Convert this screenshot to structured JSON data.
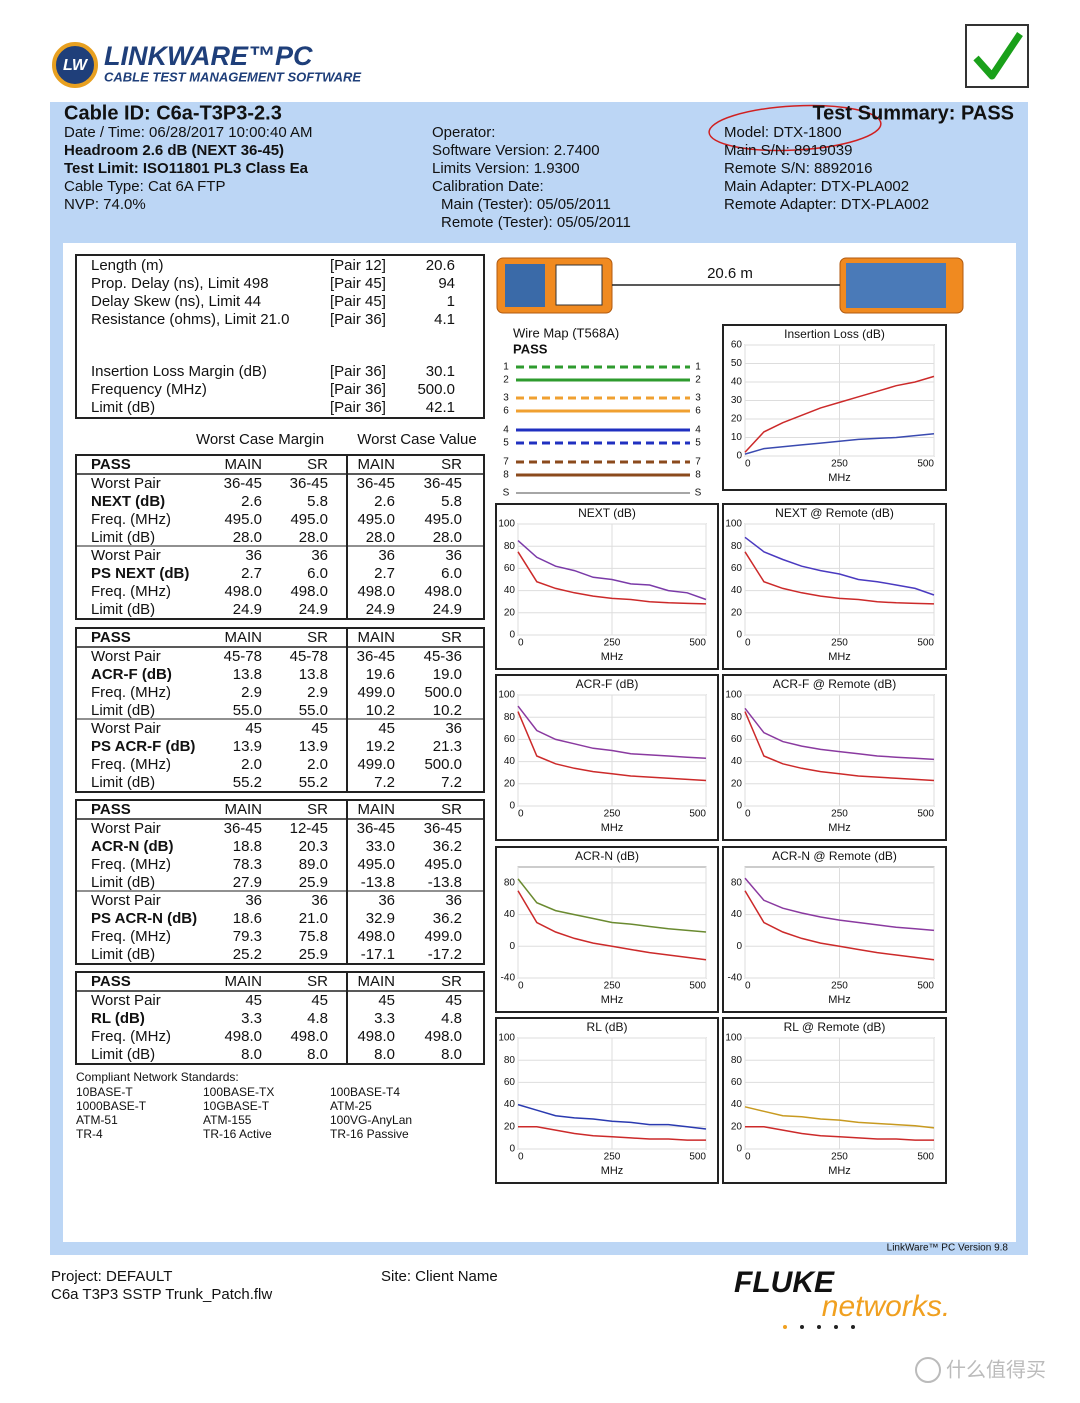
{
  "header": {
    "badge": "LW",
    "product": "LINKWARE™PC",
    "tagline": "CABLE TEST MANAGEMENT SOFTWARE"
  },
  "summary": {
    "cable_id": "Cable ID: C6a-T3P3-2.3",
    "result": "Test Summary: PASS",
    "left": [
      "Date / Time: 06/28/2017  10:00:40 AM",
      "Headroom 2.6 dB (NEXT 36-45)",
      "Test Limit: ISO11801 PL3 Class Ea",
      "Cable Type: Cat 6A FTP",
      "NVP: 74.0%"
    ],
    "middle": [
      "Operator:",
      "Software Version: 2.7400",
      "Limits Version: 1.9300",
      "Calibration Date:",
      "Main (Tester): 05/05/2011",
      "Remote (Tester): 05/05/2011"
    ],
    "right": [
      "Model: DTX-1800",
      "Main S/N: 8919039",
      "Remote S/N: 8892016",
      "Main Adapter: DTX-PLA002",
      "Remote Adapter: DTX-PLA002"
    ]
  },
  "length_table": {
    "rows": [
      [
        "Length (m)",
        "[Pair 12]",
        "20.6"
      ],
      [
        "Prop. Delay (ns), Limit 498",
        "[Pair 45]",
        "94"
      ],
      [
        "Delay Skew (ns), Limit 44",
        "[Pair 45]",
        "1"
      ],
      [
        "Resistance (ohms), Limit 21.0",
        "[Pair 36]",
        "4.1"
      ],
      [
        "Insertion Loss Margin (dB)",
        "[Pair 36]",
        "30.1"
      ],
      [
        "Frequency (MHz)",
        "[Pair 36]",
        "500.0"
      ],
      [
        "Limit (dB)",
        "[Pair 36]",
        "42.1"
      ]
    ]
  },
  "results": {
    "margin_heading": "Worst Case Margin",
    "value_heading": "Worst Case Value",
    "blocks": [
      {
        "header": [
          "PASS",
          "MAIN",
          "SR",
          "MAIN",
          "SR"
        ],
        "rows": [
          [
            "Worst Pair",
            "36-45",
            "36-45",
            "36-45",
            "36-45"
          ],
          [
            "NEXT (dB)",
            "2.6",
            "5.8",
            "2.6",
            "5.8"
          ],
          [
            "Freq. (MHz)",
            "495.0",
            "495.0",
            "495.0",
            "495.0"
          ],
          [
            "Limit (dB)",
            "28.0",
            "28.0",
            "28.0",
            "28.0"
          ],
          [
            "Worst Pair",
            "36",
            "36",
            "36",
            "36"
          ],
          [
            "PS NEXT (dB)",
            "2.7",
            "6.0",
            "2.7",
            "6.0"
          ],
          [
            "Freq. (MHz)",
            "498.0",
            "498.0",
            "498.0",
            "498.0"
          ],
          [
            "Limit (dB)",
            "24.9",
            "24.9",
            "24.9",
            "24.9"
          ]
        ]
      },
      {
        "header": [
          "PASS",
          "MAIN",
          "SR",
          "MAIN",
          "SR"
        ],
        "rows": [
          [
            "Worst Pair",
            "45-78",
            "45-78",
            "36-45",
            "45-36"
          ],
          [
            "ACR-F (dB)",
            "13.8",
            "13.8",
            "19.6",
            "19.0"
          ],
          [
            "Freq. (MHz)",
            "2.9",
            "2.9",
            "499.0",
            "500.0"
          ],
          [
            "Limit (dB)",
            "55.0",
            "55.0",
            "10.2",
            "10.2"
          ],
          [
            "Worst Pair",
            "45",
            "45",
            "45",
            "36"
          ],
          [
            "PS ACR-F (dB)",
            "13.9",
            "13.9",
            "19.2",
            "21.3"
          ],
          [
            "Freq. (MHz)",
            "2.0",
            "2.0",
            "499.0",
            "500.0"
          ],
          [
            "Limit (dB)",
            "55.2",
            "55.2",
            "7.2",
            "7.2"
          ]
        ]
      },
      {
        "header": [
          "PASS",
          "MAIN",
          "SR",
          "MAIN",
          "SR"
        ],
        "rows": [
          [
            "Worst Pair",
            "36-45",
            "12-45",
            "36-45",
            "36-45"
          ],
          [
            "ACR-N (dB)",
            "18.8",
            "20.3",
            "33.0",
            "36.2"
          ],
          [
            "Freq. (MHz)",
            "78.3",
            "89.0",
            "495.0",
            "495.0"
          ],
          [
            "Limit (dB)",
            "27.9",
            "25.9",
            "-13.8",
            "-13.8"
          ],
          [
            "Worst Pair",
            "36",
            "36",
            "36",
            "36"
          ],
          [
            "PS ACR-N (dB)",
            "18.6",
            "21.0",
            "32.9",
            "36.2"
          ],
          [
            "Freq. (MHz)",
            "79.3",
            "75.8",
            "498.0",
            "499.0"
          ],
          [
            "Limit (dB)",
            "25.2",
            "25.9",
            "-17.1",
            "-17.2"
          ]
        ]
      },
      {
        "header": [
          "PASS",
          "MAIN",
          "SR",
          "MAIN",
          "SR"
        ],
        "rows": [
          [
            "Worst Pair",
            "45",
            "45",
            "45",
            "45"
          ],
          [
            "RL (dB)",
            "3.3",
            "4.8",
            "3.3",
            "4.8"
          ],
          [
            "Freq. (MHz)",
            "498.0",
            "498.0",
            "498.0",
            "498.0"
          ],
          [
            "Limit (dB)",
            "8.0",
            "8.0",
            "8.0",
            "8.0"
          ]
        ]
      }
    ]
  },
  "standards": {
    "title": "Compliant Network Standards:",
    "items": [
      "10BASE-T",
      "100BASE-TX",
      "100BASE-T4",
      "1000BASE-T",
      "10GBASE-T",
      "ATM-25",
      "ATM-51",
      "ATM-155",
      "100VG-AnyLan",
      "TR-4",
      "TR-16 Active",
      "TR-16 Passive"
    ]
  },
  "wiremap": {
    "length": "20.6 m",
    "title": "Wire Map (T568A)",
    "result": "PASS",
    "wires": [
      {
        "pin": "1",
        "color": "#2e9b2e",
        "dashed": true
      },
      {
        "pin": "2",
        "color": "#2e9b2e",
        "dashed": false
      },
      {
        "pin": "3",
        "color": "#f0a030",
        "dashed": true
      },
      {
        "pin": "6",
        "color": "#f0a030",
        "dashed": false
      },
      {
        "pin": "4",
        "color": "#2030c0",
        "dashed": false
      },
      {
        "pin": "5",
        "color": "#2030c0",
        "dashed": true
      },
      {
        "pin": "7",
        "color": "#8b4a1c",
        "dashed": true
      },
      {
        "pin": "8",
        "color": "#8b4a1c",
        "dashed": false
      },
      {
        "pin": "S",
        "color": "#888888",
        "dashed": false
      }
    ]
  },
  "chart_data": [
    {
      "type": "line",
      "title": "Insertion Loss (dB)",
      "xlabel": "MHz",
      "x": [
        0,
        50,
        100,
        150,
        200,
        250,
        300,
        350,
        400,
        450,
        500
      ],
      "xlim": [
        0,
        500
      ],
      "xticks": [
        0,
        250,
        500
      ],
      "ylim": [
        0,
        60
      ],
      "yticks": [
        0,
        10,
        20,
        30,
        40,
        50,
        60
      ],
      "grid": true,
      "series": [
        {
          "color": "#cc2a2a",
          "values": [
            2,
            13,
            18,
            22,
            26,
            29,
            32,
            35,
            38,
            40,
            43
          ]
        },
        {
          "color": "#3a4ab0",
          "values": [
            1,
            4,
            5,
            6,
            7,
            8,
            9,
            9.5,
            10,
            11,
            12
          ]
        }
      ]
    },
    {
      "type": "line",
      "title": "NEXT (dB)",
      "xlabel": "MHz",
      "x": [
        0,
        50,
        100,
        150,
        200,
        250,
        300,
        350,
        400,
        450,
        500
      ],
      "xlim": [
        0,
        500
      ],
      "xticks": [
        0,
        250,
        500
      ],
      "ylim": [
        0,
        100
      ],
      "yticks": [
        0,
        20,
        40,
        60,
        80,
        100
      ],
      "grid": true,
      "series": [
        {
          "color": "#cc2a2a",
          "values": [
            75,
            48,
            42,
            38,
            35,
            33,
            32,
            30,
            29,
            28.5,
            28
          ]
        },
        {
          "color": "#7a3aa8",
          "values": [
            85,
            70,
            62,
            58,
            52,
            50,
            46,
            45,
            40,
            38,
            32
          ]
        }
      ]
    },
    {
      "type": "line",
      "title": "NEXT @ Remote (dB)",
      "xlabel": "MHz",
      "x": [
        0,
        50,
        100,
        150,
        200,
        250,
        300,
        350,
        400,
        450,
        500
      ],
      "xlim": [
        0,
        500
      ],
      "xticks": [
        0,
        250,
        500
      ],
      "ylim": [
        0,
        100
      ],
      "yticks": [
        0,
        20,
        40,
        60,
        80,
        100
      ],
      "grid": true,
      "series": [
        {
          "color": "#cc2a2a",
          "values": [
            75,
            48,
            42,
            38,
            35,
            33,
            32,
            30,
            29,
            28.5,
            28
          ]
        },
        {
          "color": "#4a3ac0",
          "values": [
            88,
            75,
            68,
            62,
            58,
            55,
            50,
            48,
            45,
            42,
            36
          ]
        }
      ]
    },
    {
      "type": "line",
      "title": "ACR-F (dB)",
      "xlabel": "MHz",
      "x": [
        0,
        50,
        100,
        150,
        200,
        250,
        300,
        350,
        400,
        450,
        500
      ],
      "xlim": [
        0,
        500
      ],
      "xticks": [
        0,
        250,
        500
      ],
      "ylim": [
        0,
        100
      ],
      "yticks": [
        0,
        20,
        40,
        60,
        80,
        100
      ],
      "grid": true,
      "series": [
        {
          "color": "#cc2a2a",
          "values": [
            85,
            45,
            38,
            34,
            31,
            29,
            27,
            26,
            25,
            24,
            23
          ]
        },
        {
          "color": "#8a3aa0",
          "values": [
            90,
            68,
            60,
            56,
            52,
            50,
            47,
            46,
            45,
            44,
            43
          ]
        }
      ]
    },
    {
      "type": "line",
      "title": "ACR-F @ Remote (dB)",
      "xlabel": "MHz",
      "x": [
        0,
        50,
        100,
        150,
        200,
        250,
        300,
        350,
        400,
        450,
        500
      ],
      "xlim": [
        0,
        500
      ],
      "xticks": [
        0,
        250,
        500
      ],
      "ylim": [
        0,
        100
      ],
      "yticks": [
        0,
        20,
        40,
        60,
        80,
        100
      ],
      "grid": true,
      "series": [
        {
          "color": "#cc2a2a",
          "values": [
            85,
            45,
            38,
            34,
            31,
            29,
            27,
            26,
            25,
            24,
            23
          ]
        },
        {
          "color": "#8a3aa0",
          "values": [
            88,
            66,
            58,
            54,
            51,
            49,
            47,
            45,
            44,
            43,
            42
          ]
        }
      ]
    },
    {
      "type": "line",
      "title": "ACR-N (dB)",
      "xlabel": "MHz",
      "x": [
        0,
        50,
        100,
        150,
        200,
        250,
        300,
        350,
        400,
        450,
        500
      ],
      "xlim": [
        0,
        500
      ],
      "xticks": [
        0,
        250,
        500
      ],
      "ylim": [
        -40,
        100
      ],
      "yticks": [
        -40,
        0,
        40,
        80
      ],
      "grid": true,
      "series": [
        {
          "color": "#cc2a2a",
          "values": [
            70,
            30,
            18,
            10,
            4,
            0,
            -4,
            -8,
            -11,
            -14,
            -17
          ]
        },
        {
          "color": "#6a8a30",
          "values": [
            85,
            55,
            45,
            40,
            35,
            30,
            28,
            25,
            22,
            20,
            18
          ]
        }
      ]
    },
    {
      "type": "line",
      "title": "ACR-N @ Remote (dB)",
      "xlabel": "MHz",
      "x": [
        0,
        50,
        100,
        150,
        200,
        250,
        300,
        350,
        400,
        450,
        500
      ],
      "xlim": [
        0,
        500
      ],
      "xticks": [
        0,
        250,
        500
      ],
      "ylim": [
        -40,
        100
      ],
      "yticks": [
        -40,
        0,
        40,
        80
      ],
      "grid": true,
      "series": [
        {
          "color": "#cc2a2a",
          "values": [
            70,
            30,
            18,
            10,
            4,
            0,
            -4,
            -8,
            -11,
            -14,
            -17
          ]
        },
        {
          "color": "#8a3aa0",
          "values": [
            86,
            58,
            48,
            42,
            37,
            33,
            30,
            27,
            24,
            22,
            20
          ]
        }
      ]
    },
    {
      "type": "line",
      "title": "RL (dB)",
      "xlabel": "MHz",
      "x": [
        0,
        50,
        100,
        150,
        200,
        250,
        300,
        350,
        400,
        450,
        500
      ],
      "xlim": [
        0,
        500
      ],
      "xticks": [
        0,
        250,
        500
      ],
      "ylim": [
        0,
        100
      ],
      "yticks": [
        0,
        20,
        40,
        60,
        80,
        100
      ],
      "grid": true,
      "series": [
        {
          "color": "#cc2a2a",
          "values": [
            20,
            20,
            17,
            14,
            12,
            11,
            10,
            9,
            9,
            8,
            8
          ]
        },
        {
          "color": "#2a3ab0",
          "values": [
            40,
            35,
            30,
            28,
            27,
            25,
            24,
            22,
            22,
            20,
            18
          ]
        }
      ]
    },
    {
      "type": "line",
      "title": "RL @ Remote (dB)",
      "xlabel": "MHz",
      "x": [
        0,
        50,
        100,
        150,
        200,
        250,
        300,
        350,
        400,
        450,
        500
      ],
      "xlim": [
        0,
        500
      ],
      "xticks": [
        0,
        250,
        500
      ],
      "ylim": [
        0,
        100
      ],
      "yticks": [
        0,
        20,
        40,
        60,
        80,
        100
      ],
      "grid": true,
      "series": [
        {
          "color": "#cc2a2a",
          "values": [
            20,
            20,
            17,
            14,
            12,
            11,
            10,
            9,
            9,
            8,
            8
          ]
        },
        {
          "color": "#c89a20",
          "values": [
            38,
            34,
            30,
            29,
            27,
            26,
            24,
            23,
            22,
            21,
            19
          ]
        }
      ]
    }
  ],
  "footer": {
    "version": "LinkWare™ PC Version 9.8",
    "project": "Project: DEFAULT",
    "file": "C6a T3P3 SSTP Trunk_Patch.flw",
    "site": "Site: Client Name",
    "brand": "FLUKE",
    "brand_sub": "networks.",
    "watermark": "什么值得买"
  }
}
